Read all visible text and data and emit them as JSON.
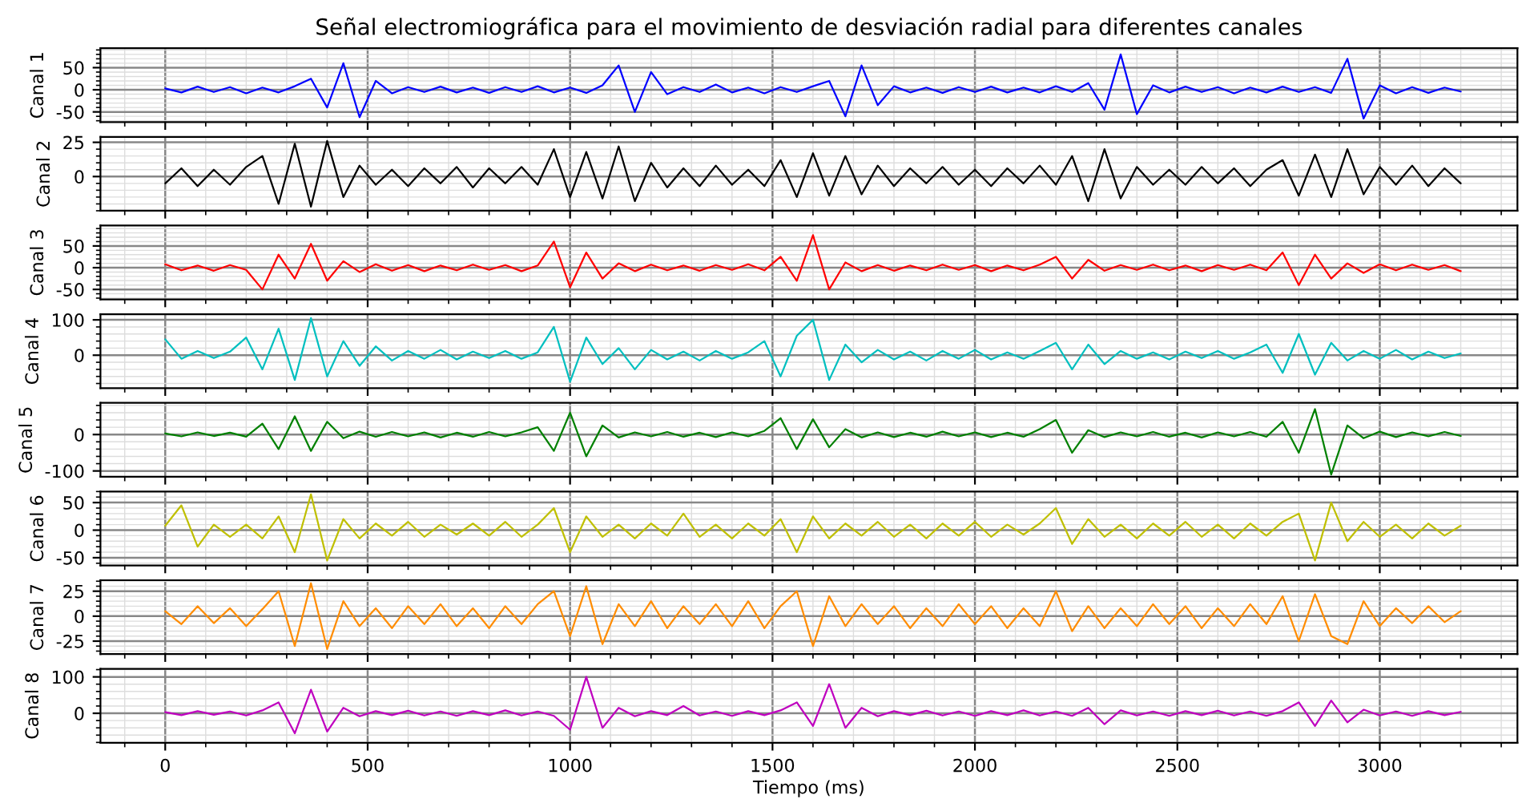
{
  "chart_data": [
    {
      "type": "line",
      "title": "Señal electromiográfica para el movimiento de desviación radial para diferentes canales",
      "ylabel": "Canal 1",
      "tick_labels": "y",
      "grid": true,
      "xlim": [
        -160,
        3340
      ],
      "xticks": [
        0,
        500,
        1000,
        1500,
        2000,
        2500,
        3000
      ],
      "ylim": [
        -73,
        94
      ],
      "yticks": [
        -50,
        0,
        50
      ],
      "x": [
        0,
        40,
        80,
        120,
        160,
        200,
        240,
        280,
        320,
        360,
        400,
        440,
        480,
        520,
        560,
        600,
        640,
        680,
        720,
        760,
        800,
        840,
        880,
        920,
        960,
        1000,
        1040,
        1080,
        1120,
        1160,
        1200,
        1240,
        1280,
        1320,
        1360,
        1400,
        1440,
        1480,
        1520,
        1560,
        1600,
        1640,
        1680,
        1720,
        1760,
        1800,
        1840,
        1880,
        1920,
        1960,
        2000,
        2040,
        2080,
        2120,
        2160,
        2200,
        2240,
        2280,
        2320,
        2360,
        2400,
        2440,
        2480,
        2520,
        2560,
        2600,
        2640,
        2680,
        2720,
        2760,
        2800,
        2840,
        2880,
        2920,
        2960,
        3000,
        3040,
        3080,
        3120,
        3160,
        3200
      ],
      "series": [
        {
          "color": "#0000ff",
          "values": [
            3,
            -6,
            7,
            -5,
            6,
            -8,
            5,
            -6,
            8,
            25,
            -40,
            60,
            -62,
            20,
            -8,
            6,
            -5,
            7,
            -6,
            5,
            -7,
            6,
            -5,
            8,
            -6,
            5,
            -7,
            10,
            55,
            -50,
            40,
            -10,
            6,
            -5,
            12,
            -6,
            5,
            -8,
            6,
            -5,
            8,
            20,
            -60,
            55,
            -35,
            8,
            -6,
            5,
            -7,
            6,
            -5,
            7,
            -6,
            5,
            -6,
            8,
            -5,
            15,
            -45,
            80,
            -55,
            10,
            -6,
            7,
            -5,
            6,
            -8,
            5,
            -6,
            7,
            -5,
            6,
            -7,
            70,
            -65,
            10,
            -8,
            6,
            -7,
            5,
            -4
          ]
        }
      ]
    },
    {
      "type": "line",
      "ylabel": "Canal 2",
      "tick_labels": "y",
      "grid": true,
      "xlim": [
        -160,
        3340
      ],
      "xticks": [
        0,
        500,
        1000,
        1500,
        2000,
        2500,
        3000
      ],
      "ylim": [
        -25,
        29
      ],
      "yticks": [
        0,
        25
      ],
      "x": [
        0,
        40,
        80,
        120,
        160,
        200,
        240,
        280,
        320,
        360,
        400,
        440,
        480,
        520,
        560,
        600,
        640,
        680,
        720,
        760,
        800,
        840,
        880,
        920,
        960,
        1000,
        1040,
        1080,
        1120,
        1160,
        1200,
        1240,
        1280,
        1320,
        1360,
        1400,
        1440,
        1480,
        1520,
        1560,
        1600,
        1640,
        1680,
        1720,
        1760,
        1800,
        1840,
        1880,
        1920,
        1960,
        2000,
        2040,
        2080,
        2120,
        2160,
        2200,
        2240,
        2280,
        2320,
        2360,
        2400,
        2440,
        2480,
        2520,
        2560,
        2600,
        2640,
        2680,
        2720,
        2760,
        2800,
        2840,
        2880,
        2920,
        2960,
        3000,
        3040,
        3080,
        3120,
        3160,
        3200
      ],
      "series": [
        {
          "color": "#000000",
          "values": [
            -5,
            6,
            -7,
            5,
            -6,
            7,
            15,
            -20,
            24,
            -22,
            26,
            -15,
            8,
            -6,
            5,
            -7,
            6,
            -5,
            7,
            -8,
            6,
            -5,
            7,
            -6,
            20,
            -15,
            18,
            -16,
            22,
            -18,
            10,
            -8,
            6,
            -7,
            8,
            -6,
            5,
            -7,
            12,
            -15,
            17,
            -14,
            15,
            -13,
            8,
            -7,
            6,
            -5,
            7,
            -6,
            5,
            -7,
            6,
            -5,
            8,
            -6,
            15,
            -18,
            20,
            -16,
            7,
            -6,
            5,
            -6,
            7,
            -5,
            6,
            -7,
            5,
            12,
            -14,
            16,
            -15,
            20,
            -13,
            7,
            -6,
            8,
            -7,
            6,
            -5
          ]
        }
      ]
    },
    {
      "type": "line",
      "ylabel": "Canal 3",
      "tick_labels": "y",
      "grid": true,
      "xlim": [
        -160,
        3340
      ],
      "xticks": [
        0,
        500,
        1000,
        1500,
        2000,
        2500,
        3000
      ],
      "ylim": [
        -73,
        97
      ],
      "yticks": [
        -50,
        0,
        50
      ],
      "x": [
        0,
        40,
        80,
        120,
        160,
        200,
        240,
        280,
        320,
        360,
        400,
        440,
        480,
        520,
        560,
        600,
        640,
        680,
        720,
        760,
        800,
        840,
        880,
        920,
        960,
        1000,
        1040,
        1080,
        1120,
        1160,
        1200,
        1240,
        1280,
        1320,
        1360,
        1400,
        1440,
        1480,
        1520,
        1560,
        1600,
        1640,
        1680,
        1720,
        1760,
        1800,
        1840,
        1880,
        1920,
        1960,
        2000,
        2040,
        2080,
        2120,
        2160,
        2200,
        2240,
        2280,
        2320,
        2360,
        2400,
        2440,
        2480,
        2520,
        2560,
        2600,
        2640,
        2680,
        2720,
        2760,
        2800,
        2840,
        2880,
        2920,
        2960,
        3000,
        3040,
        3080,
        3120,
        3160,
        3200
      ],
      "series": [
        {
          "color": "#ff0000",
          "values": [
            8,
            -6,
            5,
            -7,
            6,
            -5,
            -50,
            30,
            -25,
            55,
            -30,
            15,
            -10,
            8,
            -7,
            6,
            -8,
            5,
            -6,
            7,
            -5,
            6,
            -8,
            5,
            60,
            -45,
            35,
            -25,
            10,
            -8,
            7,
            -6,
            5,
            -7,
            6,
            -5,
            8,
            -6,
            25,
            -30,
            75,
            -50,
            12,
            -8,
            6,
            -7,
            5,
            -6,
            7,
            -5,
            6,
            -8,
            5,
            -6,
            7,
            25,
            -25,
            18,
            -7,
            6,
            -5,
            7,
            -6,
            5,
            -8,
            6,
            -5,
            7,
            -6,
            35,
            -40,
            30,
            -25,
            10,
            -12,
            8,
            -6,
            7,
            -5,
            6,
            -8
          ]
        }
      ]
    },
    {
      "type": "line",
      "ylabel": "Canal 4",
      "tick_labels": "y",
      "grid": true,
      "xlim": [
        -160,
        3340
      ],
      "xticks": [
        0,
        500,
        1000,
        1500,
        2000,
        2500,
        3000
      ],
      "ylim": [
        -93,
        116
      ],
      "yticks": [
        0,
        100
      ],
      "x": [
        0,
        40,
        80,
        120,
        160,
        200,
        240,
        280,
        320,
        360,
        400,
        440,
        480,
        520,
        560,
        600,
        640,
        680,
        720,
        760,
        800,
        840,
        880,
        920,
        960,
        1000,
        1040,
        1080,
        1120,
        1160,
        1200,
        1240,
        1280,
        1320,
        1360,
        1400,
        1440,
        1480,
        1520,
        1560,
        1600,
        1640,
        1680,
        1720,
        1760,
        1800,
        1840,
        1880,
        1920,
        1960,
        2000,
        2040,
        2080,
        2120,
        2160,
        2200,
        2240,
        2280,
        2320,
        2360,
        2400,
        2440,
        2480,
        2520,
        2560,
        2600,
        2640,
        2680,
        2720,
        2760,
        2800,
        2840,
        2880,
        2920,
        2960,
        3000,
        3040,
        3080,
        3120,
        3160,
        3200
      ],
      "series": [
        {
          "color": "#00bfbf",
          "values": [
            45,
            -10,
            12,
            -8,
            10,
            50,
            -40,
            75,
            -70,
            105,
            -60,
            40,
            -30,
            25,
            -15,
            12,
            -10,
            15,
            -12,
            10,
            -8,
            12,
            -10,
            8,
            80,
            -75,
            50,
            -25,
            20,
            -40,
            15,
            -12,
            10,
            -15,
            12,
            -10,
            8,
            40,
            -60,
            55,
            100,
            -70,
            30,
            -20,
            15,
            -12,
            10,
            -15,
            12,
            -10,
            15,
            -12,
            8,
            -10,
            12,
            35,
            -40,
            30,
            -25,
            12,
            -10,
            8,
            -12,
            10,
            -8,
            12,
            -10,
            8,
            30,
            -50,
            60,
            -55,
            35,
            -15,
            12,
            -10,
            15,
            -12,
            10,
            -8,
            5
          ]
        }
      ]
    },
    {
      "type": "line",
      "ylabel": "Canal 5",
      "tick_labels": "y",
      "grid": true,
      "xlim": [
        -160,
        3340
      ],
      "xticks": [
        0,
        500,
        1000,
        1500,
        2000,
        2500,
        3000
      ],
      "ylim": [
        -116,
        87
      ],
      "yticks": [
        -100,
        0
      ],
      "x": [
        0,
        40,
        80,
        120,
        160,
        200,
        240,
        280,
        320,
        360,
        400,
        440,
        480,
        520,
        560,
        600,
        640,
        680,
        720,
        760,
        800,
        840,
        880,
        920,
        960,
        1000,
        1040,
        1080,
        1120,
        1160,
        1200,
        1240,
        1280,
        1320,
        1360,
        1400,
        1440,
        1480,
        1520,
        1560,
        1600,
        1640,
        1680,
        1720,
        1760,
        1800,
        1840,
        1880,
        1920,
        1960,
        2000,
        2040,
        2080,
        2120,
        2160,
        2200,
        2240,
        2280,
        2320,
        2360,
        2400,
        2440,
        2480,
        2520,
        2560,
        2600,
        2640,
        2680,
        2720,
        2760,
        2800,
        2840,
        2880,
        2920,
        2960,
        3000,
        3040,
        3080,
        3120,
        3160,
        3200
      ],
      "series": [
        {
          "color": "#008000",
          "values": [
            3,
            -5,
            6,
            -4,
            5,
            -6,
            30,
            -40,
            50,
            -45,
            35,
            -10,
            8,
            -6,
            7,
            -5,
            6,
            -8,
            5,
            -6,
            7,
            -5,
            6,
            20,
            -45,
            60,
            -60,
            25,
            -8,
            6,
            -5,
            7,
            -6,
            5,
            -7,
            6,
            -5,
            10,
            45,
            -40,
            42,
            -35,
            15,
            -8,
            6,
            -7,
            5,
            -6,
            8,
            -5,
            6,
            -7,
            5,
            -6,
            15,
            40,
            -50,
            12,
            -7,
            6,
            -5,
            7,
            -6,
            5,
            -8,
            6,
            -5,
            7,
            -6,
            35,
            -50,
            70,
            -110,
            25,
            -10,
            8,
            -7,
            6,
            -5,
            7,
            -4
          ]
        }
      ]
    },
    {
      "type": "line",
      "ylabel": "Canal 6",
      "tick_labels": "y",
      "grid": true,
      "xlim": [
        -160,
        3340
      ],
      "xticks": [
        0,
        500,
        1000,
        1500,
        2000,
        2500,
        3000
      ],
      "ylim": [
        -64,
        70
      ],
      "yticks": [
        -50,
        0,
        50
      ],
      "x": [
        0,
        40,
        80,
        120,
        160,
        200,
        240,
        280,
        320,
        360,
        400,
        440,
        480,
        520,
        560,
        600,
        640,
        680,
        720,
        760,
        800,
        840,
        880,
        920,
        960,
        1000,
        1040,
        1080,
        1120,
        1160,
        1200,
        1240,
        1280,
        1320,
        1360,
        1400,
        1440,
        1480,
        1520,
        1560,
        1600,
        1640,
        1680,
        1720,
        1760,
        1800,
        1840,
        1880,
        1920,
        1960,
        2000,
        2040,
        2080,
        2120,
        2160,
        2200,
        2240,
        2280,
        2320,
        2360,
        2400,
        2440,
        2480,
        2520,
        2560,
        2600,
        2640,
        2680,
        2720,
        2760,
        2800,
        2840,
        2880,
        2920,
        2960,
        3000,
        3040,
        3080,
        3120,
        3160,
        3200
      ],
      "series": [
        {
          "color": "#bfbf00",
          "values": [
            8,
            45,
            -30,
            10,
            -12,
            10,
            -15,
            25,
            -40,
            65,
            -55,
            20,
            -15,
            12,
            -10,
            15,
            -12,
            10,
            -8,
            12,
            -10,
            15,
            -12,
            10,
            40,
            -40,
            25,
            -12,
            10,
            -15,
            12,
            -10,
            30,
            -12,
            10,
            -15,
            12,
            -10,
            20,
            -40,
            25,
            -15,
            12,
            -10,
            15,
            -12,
            10,
            -15,
            12,
            -10,
            15,
            -12,
            10,
            -8,
            12,
            40,
            -25,
            20,
            -12,
            10,
            -15,
            12,
            -10,
            15,
            -12,
            10,
            -15,
            12,
            -10,
            15,
            30,
            -55,
            50,
            -20,
            15,
            -12,
            10,
            -15,
            12,
            -10,
            8
          ]
        }
      ]
    },
    {
      "type": "line",
      "ylabel": "Canal 7",
      "tick_labels": "y",
      "grid": true,
      "xlim": [
        -160,
        3340
      ],
      "xticks": [
        0,
        500,
        1000,
        1500,
        2000,
        2500,
        3000
      ],
      "ylim": [
        -38,
        36
      ],
      "yticks": [
        -25,
        0,
        25
      ],
      "x": [
        0,
        40,
        80,
        120,
        160,
        200,
        240,
        280,
        320,
        360,
        400,
        440,
        480,
        520,
        560,
        600,
        640,
        680,
        720,
        760,
        800,
        840,
        880,
        920,
        960,
        1000,
        1040,
        1080,
        1120,
        1160,
        1200,
        1240,
        1280,
        1320,
        1360,
        1400,
        1440,
        1480,
        1520,
        1560,
        1600,
        1640,
        1680,
        1720,
        1760,
        1800,
        1840,
        1880,
        1920,
        1960,
        2000,
        2040,
        2080,
        2120,
        2160,
        2200,
        2240,
        2280,
        2320,
        2360,
        2400,
        2440,
        2480,
        2520,
        2560,
        2600,
        2640,
        2680,
        2720,
        2760,
        2800,
        2840,
        2880,
        2920,
        2960,
        3000,
        3040,
        3080,
        3120,
        3160,
        3200
      ],
      "series": [
        {
          "color": "#ff8c00",
          "values": [
            5,
            -8,
            10,
            -7,
            8,
            -10,
            7,
            25,
            -30,
            33,
            -33,
            15,
            -10,
            8,
            -12,
            10,
            -8,
            12,
            -10,
            8,
            -12,
            10,
            -8,
            12,
            25,
            -20,
            30,
            -28,
            12,
            -10,
            15,
            -12,
            10,
            -8,
            12,
            -10,
            15,
            -12,
            10,
            25,
            -30,
            20,
            -10,
            12,
            -8,
            10,
            -12,
            8,
            -10,
            12,
            -8,
            10,
            -12,
            8,
            -10,
            25,
            -15,
            10,
            -12,
            8,
            -10,
            12,
            -8,
            10,
            -12,
            8,
            -10,
            12,
            -8,
            20,
            -25,
            22,
            -20,
            -28,
            15,
            -10,
            8,
            -7,
            10,
            -6,
            5
          ]
        }
      ]
    },
    {
      "type": "line",
      "ylabel": "Canal 8",
      "xlabel": "Tiempo (ms)",
      "grid": true,
      "xlim": [
        -160,
        3340
      ],
      "xticks": [
        0,
        500,
        1000,
        1500,
        2000,
        2500,
        3000
      ],
      "ylim": [
        -81,
        122
      ],
      "yticks": [
        0,
        100
      ],
      "x": [
        0,
        40,
        80,
        120,
        160,
        200,
        240,
        280,
        320,
        360,
        400,
        440,
        480,
        520,
        560,
        600,
        640,
        680,
        720,
        760,
        800,
        840,
        880,
        920,
        960,
        1000,
        1040,
        1080,
        1120,
        1160,
        1200,
        1240,
        1280,
        1320,
        1360,
        1400,
        1440,
        1480,
        1520,
        1560,
        1600,
        1640,
        1680,
        1720,
        1760,
        1800,
        1840,
        1880,
        1920,
        1960,
        2000,
        2040,
        2080,
        2120,
        2160,
        2200,
        2240,
        2280,
        2320,
        2360,
        2400,
        2440,
        2480,
        2520,
        2560,
        2600,
        2640,
        2680,
        2720,
        2760,
        2800,
        2840,
        2880,
        2920,
        2960,
        3000,
        3040,
        3080,
        3120,
        3160,
        3200
      ],
      "series": [
        {
          "color": "#bf00bf",
          "values": [
            3,
            -5,
            6,
            -4,
            5,
            -6,
            8,
            30,
            -55,
            65,
            -50,
            15,
            -8,
            6,
            -5,
            7,
            -6,
            5,
            -7,
            6,
            -5,
            8,
            -6,
            5,
            -7,
            -45,
            100,
            -40,
            15,
            -8,
            6,
            -5,
            20,
            -6,
            5,
            -7,
            6,
            -5,
            8,
            30,
            -35,
            80,
            -40,
            15,
            -8,
            6,
            -5,
            7,
            -6,
            5,
            -7,
            6,
            -5,
            8,
            -6,
            5,
            -7,
            15,
            -30,
            8,
            -6,
            5,
            -7,
            6,
            -5,
            7,
            -6,
            5,
            -7,
            6,
            30,
            -35,
            35,
            -25,
            10,
            -6,
            5,
            -7,
            6,
            -5,
            4
          ]
        }
      ]
    }
  ]
}
